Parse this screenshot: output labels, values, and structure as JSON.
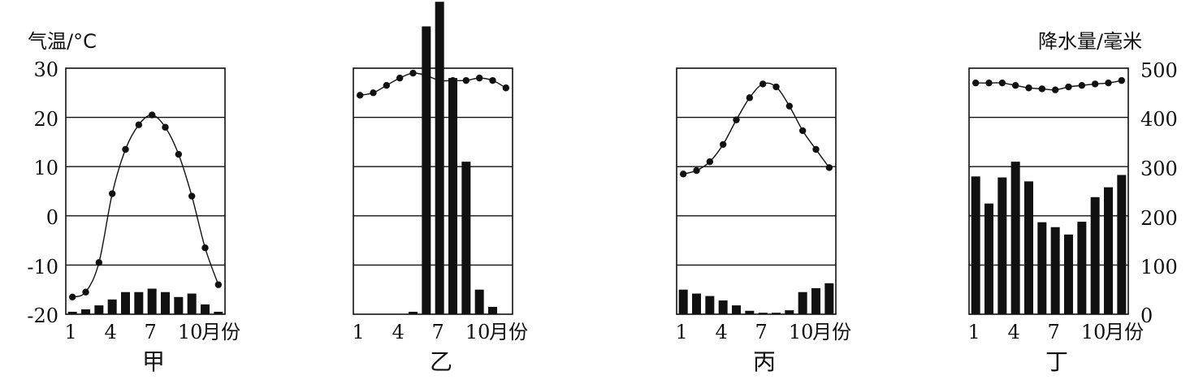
{
  "y_left_label": "气温/°C",
  "y_right_label": "降水量/毫米",
  "x_unit": "月份",
  "temp_ticks": [
    "30",
    "20",
    "10",
    "0",
    "-10",
    "-20"
  ],
  "precip_ticks": [
    "500",
    "400",
    "300",
    "200",
    "100",
    "0"
  ],
  "x_ticks": [
    "1",
    "4",
    "7",
    "10"
  ],
  "colors": {
    "ink": "#111111",
    "background": "#ffffff"
  },
  "chart_data": [
    {
      "type": "bar",
      "panel": "甲",
      "x": [
        1,
        2,
        3,
        4,
        5,
        6,
        7,
        8,
        9,
        10,
        11,
        12
      ],
      "temperature": [
        -16.5,
        -15.5,
        -9.5,
        4.5,
        13.5,
        18.5,
        20.5,
        18,
        12.5,
        4,
        -6.5,
        -14
      ],
      "precipitation": [
        5,
        10,
        18,
        30,
        45,
        45,
        52,
        45,
        35,
        42,
        20,
        5
      ],
      "temp_range": [
        -20,
        30
      ],
      "precip_range": [
        0,
        500
      ]
    },
    {
      "type": "bar",
      "panel": "乙",
      "x": [
        1,
        2,
        3,
        4,
        5,
        6,
        7,
        8,
        9,
        10,
        11,
        12
      ],
      "temperature": [
        24.5,
        25,
        26.5,
        28,
        29,
        28.5,
        27.5,
        27.5,
        27.5,
        28,
        27.5,
        26
      ],
      "precipitation": [
        0,
        0,
        0,
        0,
        5,
        585,
        635,
        480,
        310,
        50,
        15,
        0
      ],
      "temp_range": [
        -20,
        30
      ],
      "precip_range": [
        0,
        500
      ]
    },
    {
      "type": "bar",
      "panel": "丙",
      "x": [
        1,
        2,
        3,
        4,
        5,
        6,
        7,
        8,
        9,
        10,
        11,
        12
      ],
      "temperature": [
        8.5,
        9.2,
        11,
        14.5,
        19.5,
        24,
        26.8,
        26.2,
        22.3,
        17.3,
        13.5,
        9.8
      ],
      "precipitation": [
        50,
        42,
        37,
        28,
        18,
        7,
        3,
        3,
        8,
        45,
        53,
        63
      ],
      "temp_range": [
        -20,
        30
      ],
      "precip_range": [
        0,
        500
      ]
    },
    {
      "type": "bar",
      "panel": "丁",
      "x": [
        1,
        2,
        3,
        4,
        5,
        6,
        7,
        8,
        9,
        10,
        11,
        12
      ],
      "temperature": [
        27,
        27,
        27,
        26.5,
        26,
        25.8,
        25.6,
        26.2,
        26.5,
        26.8,
        27,
        27.5
      ],
      "precipitation": [
        280,
        225,
        278,
        310,
        270,
        187,
        177,
        162,
        188,
        238,
        258,
        283
      ],
      "temp_range": [
        -20,
        30
      ],
      "precip_range": [
        0,
        500
      ]
    }
  ]
}
